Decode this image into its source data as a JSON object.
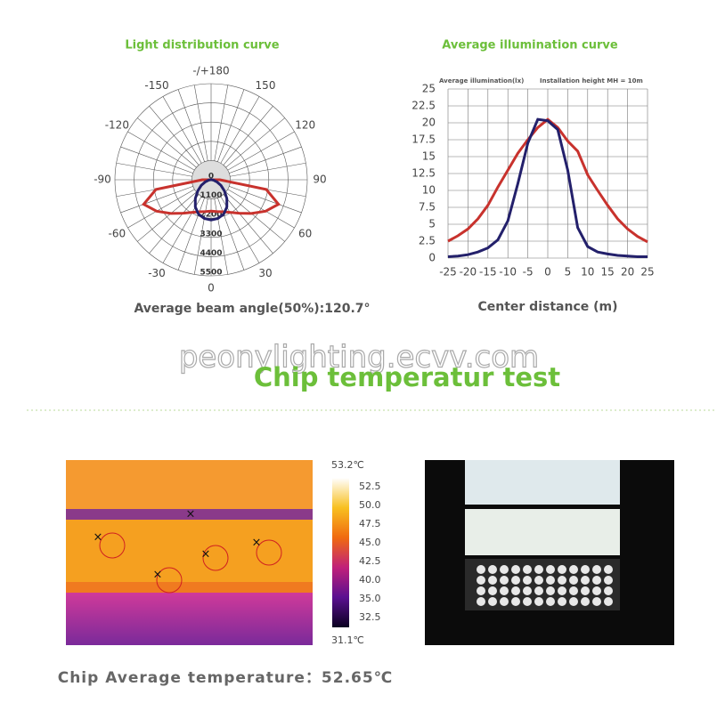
{
  "chart_data": [
    {
      "type": "polar",
      "title": "Light distribution curve",
      "caption": "Average beam angle(50%):120.7°",
      "angles": [
        -90,
        -80,
        -70,
        -60,
        -50,
        -40,
        -30,
        -20,
        -10,
        0,
        10,
        20,
        30,
        40,
        50,
        60,
        70,
        80,
        90
      ],
      "series": [
        {
          "color": "#c8322d",
          "values": [
            500,
            3200,
            4100,
            3600,
            3000,
            2500,
            2150,
            1950,
            1850,
            1800,
            1850,
            1950,
            2150,
            2500,
            3000,
            3600,
            4100,
            3200,
            500
          ]
        },
        {
          "color": "#23206b",
          "values": [
            50,
            150,
            350,
            650,
            1000,
            1400,
            1800,
            2100,
            2250,
            2300,
            2250,
            2100,
            1800,
            1400,
            1000,
            650,
            350,
            150,
            50
          ]
        }
      ],
      "rlim": [
        0,
        5500
      ],
      "rticks": [
        0,
        1100,
        2200,
        3300,
        4400,
        5500
      ],
      "angle_ticks": [
        {
          "value": 180,
          "label": "-/+180"
        },
        -150,
        150,
        -120,
        120,
        -90,
        90,
        -60,
        60,
        -30,
        30,
        0
      ]
    },
    {
      "type": "line",
      "title": "Average illumination curve",
      "subtitle": "Average illumination(lx)",
      "note": "Installation height MH = 10m",
      "xlabel": "Center distance (m)",
      "x": [
        -25,
        -22.5,
        -20,
        -17.5,
        -15,
        -12.5,
        -10,
        -7.5,
        -5,
        -2.5,
        0,
        2.5,
        5,
        7.5,
        10,
        12.5,
        15,
        17.5,
        20,
        22.5,
        25
      ],
      "series": [
        {
          "color": "#c8322d",
          "values": [
            2.5,
            3.3,
            4.3,
            5.8,
            7.8,
            10.5,
            13,
            15.5,
            17.5,
            19.3,
            20.5,
            19.3,
            17.3,
            15.8,
            12.3,
            10,
            7.8,
            5.8,
            4.3,
            3.2,
            2.4
          ]
        },
        {
          "color": "#23206b",
          "values": [
            0.2,
            0.3,
            0.5,
            0.9,
            1.5,
            2.7,
            5.5,
            11,
            17,
            20.5,
            20.3,
            19,
            13,
            4.5,
            1.7,
            0.9,
            0.6,
            0.4,
            0.3,
            0.2,
            0.2
          ]
        }
      ],
      "xlim": [
        -25,
        25
      ],
      "xticks": [
        -25,
        -20,
        -15,
        -10,
        -5,
        0,
        5,
        10,
        15,
        20,
        25
      ],
      "ylim": [
        0,
        25
      ],
      "yticks": [
        0,
        2.5,
        5,
        7.5,
        10,
        12.5,
        15,
        17.5,
        20,
        22.5,
        25
      ],
      "grid": true
    }
  ],
  "watermark": "peonylighting.ecvv.com",
  "section_title": "Chip temperatur test",
  "thermal_scale": {
    "max": "53.2℃",
    "min": "31.1℃",
    "labels": [
      "52.5",
      "50.0",
      "47.5",
      "45.0",
      "42.5",
      "40.0",
      "35.0",
      "32.5"
    ]
  },
  "footer": "Chip Average temperature：52.65℃"
}
